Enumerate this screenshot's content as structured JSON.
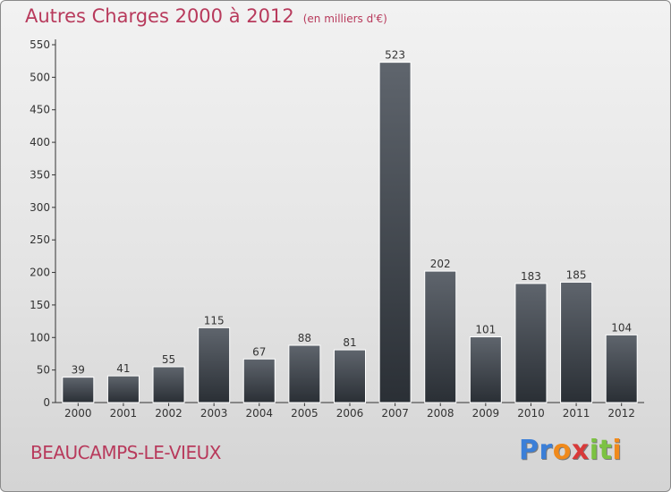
{
  "header": {
    "title": "Autres Charges 2000 à 2012",
    "subtitle": "(en milliers d'€)"
  },
  "footer": {
    "city": "BEAUCAMPS-LE-VIEUX",
    "logo_letters": [
      "P",
      "r",
      "o",
      "x",
      "i",
      "t",
      "i"
    ],
    "logo_colors": [
      "#3b7fd8",
      "#3b7fd8",
      "#f08a1c",
      "#d83a3a",
      "#7cc242",
      "#7cc242",
      "#f08a1c"
    ]
  },
  "colors": {
    "accent": "#b83a5c",
    "bar_top": "#5f656d",
    "bar_bottom": "#2a2f35"
  },
  "chart_data": {
    "type": "bar",
    "title": "Autres Charges 2000 à 2012",
    "subtitle": "(en milliers d'€)",
    "categories": [
      "2000",
      "2001",
      "2002",
      "2003",
      "2004",
      "2005",
      "2006",
      "2007",
      "2008",
      "2009",
      "2010",
      "2011",
      "2012"
    ],
    "values": [
      39,
      41,
      55,
      115,
      67,
      88,
      81,
      523,
      202,
      101,
      183,
      185,
      104
    ],
    "ylim": [
      0,
      550
    ],
    "yticks": [
      0,
      50,
      100,
      150,
      200,
      250,
      300,
      350,
      400,
      450,
      500,
      550
    ],
    "grid": false,
    "legend": "none"
  }
}
